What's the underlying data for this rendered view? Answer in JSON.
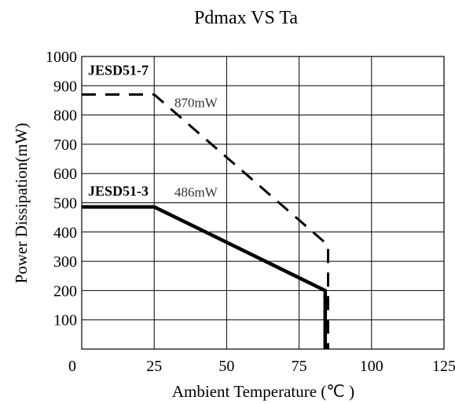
{
  "chart_data": {
    "type": "line",
    "title": "Pdmax VS Ta",
    "xlabel": "Ambient Temperature (℃ )",
    "ylabel": "Power Dissipation(mW)",
    "xlim": [
      0,
      125
    ],
    "ylim": [
      0,
      1000
    ],
    "x_ticks": [
      "0",
      "25",
      "50",
      "75",
      "100",
      "125"
    ],
    "y_ticks": [
      "100",
      "200",
      "300",
      "400",
      "500",
      "600",
      "700",
      "800",
      "900",
      "1000"
    ],
    "grid": true,
    "series": [
      {
        "name": "JESD51-7",
        "style": "dashed",
        "color": "#000000",
        "x": [
          0,
          25,
          85,
          85
        ],
        "y": [
          870,
          870,
          355,
          0
        ],
        "annotation": "870mW"
      },
      {
        "name": "JESD51-3",
        "style": "solid",
        "color": "#000000",
        "x": [
          0,
          25,
          84,
          84
        ],
        "y": [
          486,
          486,
          200,
          0
        ],
        "annotation": "486mW"
      }
    ]
  }
}
